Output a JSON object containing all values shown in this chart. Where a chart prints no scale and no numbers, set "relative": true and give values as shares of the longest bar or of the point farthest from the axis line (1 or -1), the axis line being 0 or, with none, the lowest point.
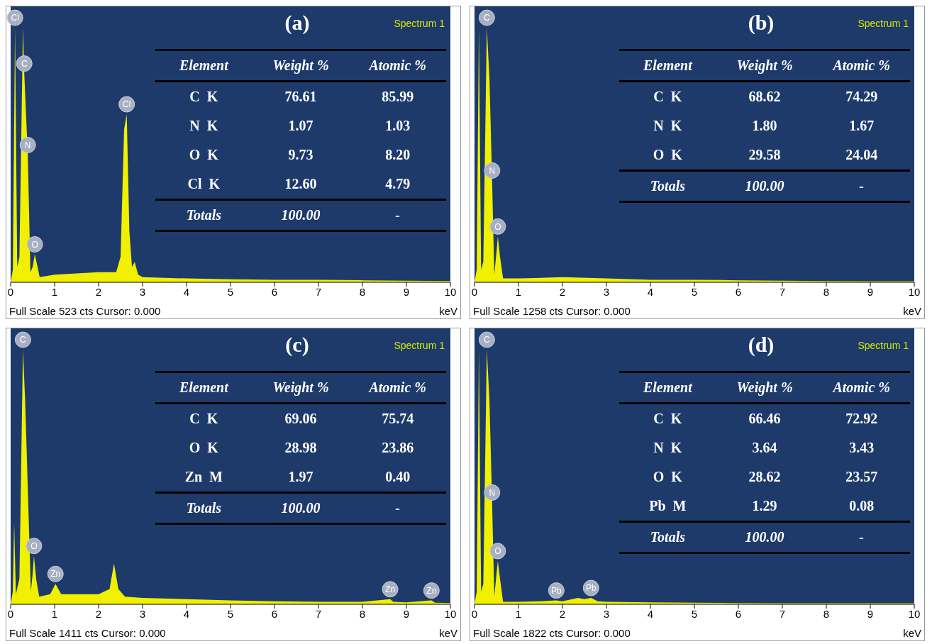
{
  "chart_data": [
    {
      "type": "area",
      "title": "(a)",
      "xlabel": "keV",
      "relative": true,
      "xlim": [
        0,
        10
      ],
      "xticks": [
        0,
        1,
        2,
        3,
        4,
        5,
        6,
        7,
        8,
        9,
        10
      ],
      "color": "#f0f000",
      "x": [
        0,
        0.05,
        0.1,
        0.15,
        0.2,
        0.28,
        0.31,
        0.39,
        0.45,
        0.5,
        0.55,
        0.6,
        0.66,
        1,
        1.5,
        2,
        2.4,
        2.5,
        2.58,
        2.64,
        2.7,
        2.76,
        2.82,
        2.9,
        3,
        4,
        5,
        6,
        7,
        8,
        9,
        10
      ],
      "values": [
        0,
        0.05,
        1,
        0.06,
        0.1,
        1,
        0.82,
        0.5,
        0.04,
        0.06,
        0.11,
        0.07,
        0.02,
        0.03,
        0.035,
        0.04,
        0.04,
        0.1,
        0.6,
        0.66,
        0.2,
        0.06,
        0.08,
        0.03,
        0.02,
        0.015,
        0.012,
        0.01,
        0.01,
        0.008,
        0.006,
        0.005
      ],
      "annotations": [
        "Spectrum 1",
        "Full Scale 523 cts Cursor: 0.000",
        "Element",
        "Weight %",
        "Atomic %",
        "C  K",
        "76.61",
        "85.99",
        "N  K",
        "1.07",
        "1.03",
        "O  K",
        "9.73",
        "8.20",
        "Cl  K",
        "12.60",
        "4.79",
        "Totals",
        "100.00",
        "-",
        {
          "text": "Cl",
          "x": 0.1,
          "y": 1
        },
        {
          "text": "C",
          "x": 0.31,
          "y": 0.82
        },
        {
          "text": "N",
          "x": 0.39,
          "y": 0.5
        },
        {
          "text": "O",
          "x": 0.55,
          "y": 0.11
        },
        {
          "text": "Cl",
          "x": 2.64,
          "y": 0.66
        }
      ]
    },
    {
      "type": "area",
      "title": "(b)",
      "xlabel": "keV",
      "relative": true,
      "xlim": [
        0,
        10
      ],
      "xticks": [
        0,
        1,
        2,
        3,
        4,
        5,
        6,
        7,
        8,
        9,
        10
      ],
      "color": "#f0f000",
      "x": [
        0,
        0.05,
        0.1,
        0.15,
        0.2,
        0.28,
        0.34,
        0.4,
        0.45,
        0.5,
        0.53,
        0.58,
        0.65,
        1,
        2,
        3,
        4,
        5,
        6,
        7,
        8,
        9,
        10
      ],
      "values": [
        0,
        0.05,
        1,
        0.05,
        0.08,
        1,
        0.8,
        0.4,
        0.03,
        0.12,
        0.18,
        0.1,
        0.015,
        0.015,
        0.02,
        0.015,
        0.01,
        0.01,
        0.008,
        0.006,
        0.005,
        0.004,
        0.004
      ],
      "annotations": [
        "Spectrum 1",
        "Full Scale 1258 cts Cursor: 0.000",
        "Element",
        "Weight %",
        "Atomic %",
        "C  K",
        "68.62",
        "74.29",
        "N  K",
        "1.80",
        "1.67",
        "O  K",
        "29.58",
        "24.04",
        "Totals",
        "100.00",
        "-",
        {
          "text": "C",
          "x": 0.28,
          "y": 1
        },
        {
          "text": "N",
          "x": 0.4,
          "y": 0.4
        },
        {
          "text": "O",
          "x": 0.53,
          "y": 0.18
        }
      ]
    },
    {
      "type": "area",
      "title": "(c)",
      "xlabel": "keV",
      "relative": true,
      "xlim": [
        0,
        10
      ],
      "xticks": [
        0,
        1,
        2,
        3,
        4,
        5,
        6,
        7,
        8,
        9,
        10
      ],
      "color": "#f0f000",
      "x": [
        0,
        0.05,
        0.08,
        0.12,
        0.2,
        0.28,
        0.33,
        0.4,
        0.46,
        0.5,
        0.53,
        0.58,
        0.65,
        0.9,
        1.02,
        1.15,
        1.5,
        2,
        2.25,
        2.35,
        2.45,
        2.6,
        3,
        4,
        5,
        6,
        7,
        8,
        8.63,
        8.7,
        9,
        9.57,
        9.65,
        10
      ],
      "values": [
        0,
        0.05,
        0.32,
        0.04,
        0.1,
        1,
        0.8,
        0.4,
        0.05,
        0.12,
        0.19,
        0.1,
        0.03,
        0.04,
        0.08,
        0.04,
        0.04,
        0.04,
        0.06,
        0.16,
        0.06,
        0.03,
        0.025,
        0.02,
        0.015,
        0.012,
        0.01,
        0.01,
        0.02,
        0.01,
        0.008,
        0.015,
        0.006,
        0.005
      ],
      "annotations": [
        "Spectrum 1",
        "Full Scale 1411 cts Cursor: 0.000",
        "Element",
        "Weight %",
        "Atomic %",
        "C  K",
        "69.06",
        "75.74",
        "O  K",
        "28.98",
        "23.86",
        "Zn  M",
        "1.97",
        "0.40",
        "Totals",
        "100.00",
        "-",
        {
          "text": "C",
          "x": 0.28,
          "y": 1
        },
        {
          "text": "O",
          "x": 0.53,
          "y": 0.19
        },
        {
          "text": "Zn",
          "x": 1.02,
          "y": 0.08
        },
        {
          "text": "Zn",
          "x": 8.63,
          "y": 0.02
        },
        {
          "text": "Zn",
          "x": 9.57,
          "y": 0.015
        }
      ]
    },
    {
      "type": "area",
      "title": "(d)",
      "xlabel": "keV",
      "relative": true,
      "xlim": [
        0,
        10
      ],
      "xticks": [
        0,
        1,
        2,
        3,
        4,
        5,
        6,
        7,
        8,
        9,
        10
      ],
      "color": "#f0f000",
      "x": [
        0,
        0.05,
        0.1,
        0.15,
        0.2,
        0.28,
        0.34,
        0.4,
        0.45,
        0.5,
        0.53,
        0.58,
        0.65,
        1,
        1.5,
        1.86,
        2,
        2.35,
        2.5,
        2.65,
        2.8,
        3,
        4,
        5,
        6,
        7,
        8,
        9,
        10
      ],
      "values": [
        0,
        0.05,
        1,
        0.05,
        0.08,
        1,
        0.8,
        0.4,
        0.03,
        0.12,
        0.17,
        0.1,
        0.01,
        0.01,
        0.012,
        0.015,
        0.012,
        0.025,
        0.02,
        0.025,
        0.012,
        0.01,
        0.008,
        0.006,
        0.005,
        0.004,
        0.004,
        0.004,
        0.004
      ],
      "annotations": [
        "Spectrum 1",
        "Full Scale 1822 cts Cursor: 0.000",
        "Element",
        "Weight %",
        "Atomic %",
        "C  K",
        "66.46",
        "72.92",
        "N  K",
        "3.64",
        "3.43",
        "O  K",
        "28.62",
        "23.57",
        "Pb  M",
        "1.29",
        "0.08",
        "Totals",
        "100.00",
        "-",
        {
          "text": "C",
          "x": 0.28,
          "y": 1
        },
        {
          "text": "N",
          "x": 0.4,
          "y": 0.4
        },
        {
          "text": "O",
          "x": 0.53,
          "y": 0.17
        },
        {
          "text": "Pb",
          "x": 1.86,
          "y": 0.015
        },
        {
          "text": "Pb",
          "x": 2.65,
          "y": 0.025
        }
      ]
    }
  ]
}
